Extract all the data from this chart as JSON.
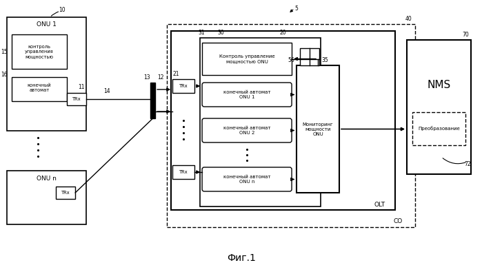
{
  "title": "Фиг.1",
  "background": "#ffffff",
  "label_5": "5",
  "label_10": "10",
  "label_11": "11",
  "label_12": "12",
  "label_13": "13",
  "label_14": "14",
  "label_15": "15",
  "label_16": "16",
  "label_20": "20",
  "label_21": "21",
  "label_30": "30",
  "label_31": "31",
  "label_35": "35",
  "label_40": "40",
  "label_56": "56",
  "label_70": "70",
  "label_72": "72",
  "onu1_label": "ONU 1",
  "onu_n_label": "ONU n",
  "olt_label": "OLT",
  "co_label": "CO",
  "nms_label": "NMS",
  "trx_label": "TRx",
  "power_control_label": "контроль\nуправления\nмощностью",
  "fsm_label": "конечный\nавтомат",
  "olt_power_control": "Контроль управление\nмощностью ONU",
  "fsm_onu1": "конечный автомат\nONU 1",
  "fsm_onu2": "конечный автомат\nONU 2",
  "fsm_onun": "конечный автомат\nONU n",
  "monitoring_label": "Мониторинг\nмощности\nONU",
  "transform_label": "Преобразование"
}
